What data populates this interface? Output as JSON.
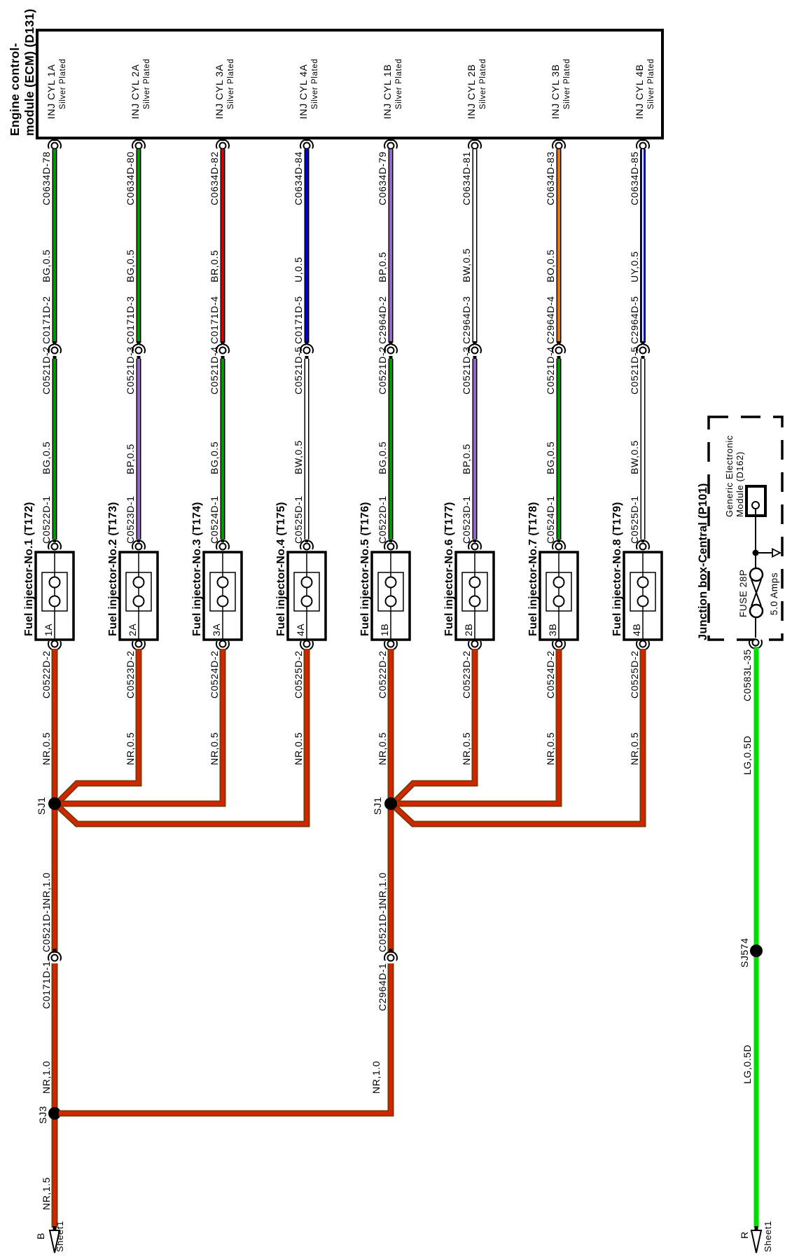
{
  "ecm": {
    "title_line1": "Engine control-",
    "title_line2": "module (ECM) (D131)"
  },
  "columns": [
    {
      "ecm_pin": "INJ CYL 1A",
      "plating": "Silver Plated",
      "ecm_connector": "C0634D-78",
      "top_wire": {
        "code": "BG,0.5",
        "color_key": "BG"
      },
      "inline_upper": "C0171D-2",
      "inline_lower": "C0521D-2",
      "lower_wire": {
        "code": "BG,0.5",
        "color_key": "BG"
      },
      "injector_connector_top": "C0522D-1",
      "injector": {
        "title": "Fuel injector-No.1 (T172)",
        "pin": "1A"
      },
      "injector_connector_bottom": "C0522D-2",
      "supply_wire": {
        "code": "NR,0.5",
        "color_key": "NR"
      }
    },
    {
      "ecm_pin": "INJ CYL 2A",
      "plating": "Silver Plated",
      "ecm_connector": "C0634D-80",
      "top_wire": {
        "code": "BG,0.5",
        "color_key": "BG"
      },
      "inline_upper": "C0171D-3",
      "inline_lower": "C0521D-3",
      "lower_wire": {
        "code": "BP,0.5",
        "color_key": "BP"
      },
      "injector_connector_top": "C0523D-1",
      "injector": {
        "title": "Fuel injector-No.2 (T173)",
        "pin": "2A"
      },
      "injector_connector_bottom": "C0523D-2",
      "supply_wire": {
        "code": "NR,0.5",
        "color_key": "NR"
      }
    },
    {
      "ecm_pin": "INJ CYL 3A",
      "plating": "Silver Plated",
      "ecm_connector": "C0634D-82",
      "top_wire": {
        "code": "BR,0.5",
        "color_key": "BR"
      },
      "inline_upper": "C0171D-4",
      "inline_lower": "C0521D-4",
      "lower_wire": {
        "code": "BG,0.5",
        "color_key": "BG"
      },
      "injector_connector_top": "C0524D-1",
      "injector": {
        "title": "Fuel injector-No.3 (T174)",
        "pin": "3A"
      },
      "injector_connector_bottom": "C0524D-2",
      "supply_wire": {
        "code": "NR,0.5",
        "color_key": "NR"
      }
    },
    {
      "ecm_pin": "INJ CYL 4A",
      "plating": "Silver Plated",
      "ecm_connector": "C0634D-84",
      "top_wire": {
        "code": "U,0.5",
        "color_key": "U"
      },
      "inline_upper": "C0171D-5",
      "inline_lower": "C0521D-5",
      "lower_wire": {
        "code": "BW,0.5",
        "color_key": "BW"
      },
      "injector_connector_top": "C0525D-1",
      "injector": {
        "title": "Fuel injector-No.4 (T175)",
        "pin": "4A"
      },
      "injector_connector_bottom": "C0525D-2",
      "supply_wire": {
        "code": "NR,0.5",
        "color_key": "NR"
      }
    },
    {
      "ecm_pin": "INJ CYL 1B",
      "plating": "Silver Plated",
      "ecm_connector": "C0634D-79",
      "top_wire": {
        "code": "BP,0.5",
        "color_key": "BP"
      },
      "inline_upper": "C2964D-2",
      "inline_lower": "C0521D-2",
      "lower_wire": {
        "code": "BG,0.5",
        "color_key": "BG"
      },
      "injector_connector_top": "C0522D-1",
      "injector": {
        "title": "Fuel injector-No.5 (T176)",
        "pin": "1B"
      },
      "injector_connector_bottom": "C0522D-2",
      "supply_wire": {
        "code": "NR,0.5",
        "color_key": "NR"
      }
    },
    {
      "ecm_pin": "INJ CYL 2B",
      "plating": "Silver Plated",
      "ecm_connector": "C0634D-81",
      "top_wire": {
        "code": "BW,0.5",
        "color_key": "BW"
      },
      "inline_upper": "C2964D-3",
      "inline_lower": "C0521D-3",
      "lower_wire": {
        "code": "BP,0.5",
        "color_key": "BP"
      },
      "injector_connector_top": "C0523D-1",
      "injector": {
        "title": "Fuel injector-No.6 (T177)",
        "pin": "2B"
      },
      "injector_connector_bottom": "C0523D-2",
      "supply_wire": {
        "code": "NR,0.5",
        "color_key": "NR"
      }
    },
    {
      "ecm_pin": "INJ CYL 3B",
      "plating": "Silver Plated",
      "ecm_connector": "C0634D-83",
      "top_wire": {
        "code": "BO,0.5",
        "color_key": "BO"
      },
      "inline_upper": "C2964D-4",
      "inline_lower": "C0521D-4",
      "lower_wire": {
        "code": "BG,0.5",
        "color_key": "BG"
      },
      "injector_connector_top": "C0524D-1",
      "injector": {
        "title": "Fuel injector-No.7 (T178)",
        "pin": "3B"
      },
      "injector_connector_bottom": "C0524D-2",
      "supply_wire": {
        "code": "NR,0.5",
        "color_key": "NR"
      }
    },
    {
      "ecm_pin": "INJ CYL 4B",
      "plating": "Silver Plated",
      "ecm_connector": "C0634D-85",
      "top_wire": {
        "code": "UY,0.5",
        "color_key": "UY"
      },
      "inline_upper": "C2964D-5",
      "inline_lower": "C0521D-5",
      "lower_wire": {
        "code": "BW,0.5",
        "color_key": "BW"
      },
      "injector_connector_top": "C0525D-1",
      "injector": {
        "title": "Fuel injector-No.8 (T179)",
        "pin": "4B"
      },
      "injector_connector_bottom": "C0525D-2",
      "supply_wire": {
        "code": "NR,0.5",
        "color_key": "NR"
      }
    }
  ],
  "feed_left": {
    "splice1": "SJ1",
    "wire_mid": "NR,1.0",
    "inline_upper": "C0521D-1",
    "inline_lower": "C0171D-1",
    "wire_low": "NR,1.0",
    "splice2": "SJ3",
    "wire_bottom": "NR,1.5",
    "sheet_letter": "B",
    "sheet_ref": "Sheet1"
  },
  "feed_right": {
    "splice1": "SJ1",
    "wire_mid": "NR,1.0",
    "inline_upper": "C0521D-1",
    "inline_lower": "C2964D-1",
    "wire_low": "NR,1.0"
  },
  "junction_box": {
    "title": "Junction box-Central (P101)",
    "module_line1": "Generic Electronic",
    "module_line2": "Module (D162)",
    "fuse": "FUSE 28P",
    "rating": "5.0 Amps",
    "connector": "C0583L-35",
    "wire1": "LG,0.5D",
    "splice": "SJ574",
    "wire2": "LG,0.5D",
    "sheet_letter": "R",
    "sheet_ref": "Sheet1"
  },
  "colors": {
    "BG": "#009900",
    "BR": "#d40000",
    "U": "#0000cc",
    "BP": "#9966cc",
    "BW": "#ffffff",
    "BO": "#e07818",
    "UY": "#0000cc",
    "NR": "#d42400",
    "NR_outline": "#7a3a00",
    "LG": "#00dd00"
  }
}
